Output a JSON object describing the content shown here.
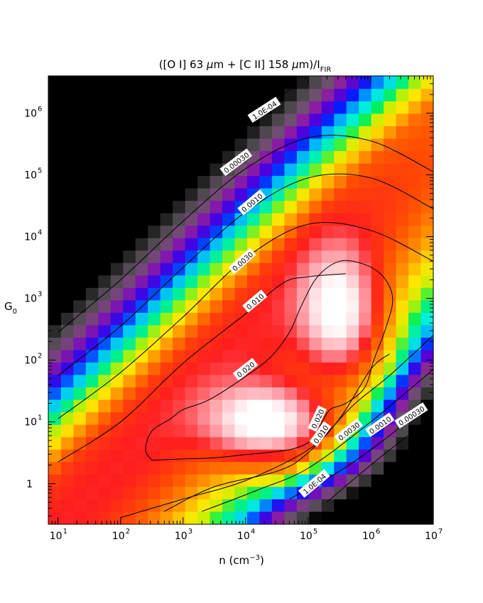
{
  "chart_data": {
    "type": "heatmap",
    "title": {
      "prefix": "([O I] 63 ",
      "mu1": "μ",
      "mid": "m + [C II] 158 ",
      "mu2": "μ",
      "suffix": "m)/I",
      "sub": "FIR"
    },
    "xlabel": {
      "text": "n (cm",
      "sup": "−3",
      "close": ")"
    },
    "ylabel": {
      "text": "G",
      "sub": "0"
    },
    "xscale": "log",
    "yscale": "log",
    "xlim": [
      7.0,
      10000000.0
    ],
    "ylim": [
      0.22,
      4000000.0
    ],
    "x_ticks": [
      {
        "value": 10,
        "base": "10",
        "exp": "1"
      },
      {
        "value": 100,
        "base": "10",
        "exp": "2"
      },
      {
        "value": 1000,
        "base": "10",
        "exp": "3"
      },
      {
        "value": 10000,
        "base": "10",
        "exp": "4"
      },
      {
        "value": 100000,
        "base": "10",
        "exp": "5"
      },
      {
        "value": 1000000,
        "base": "10",
        "exp": "6"
      },
      {
        "value": 10000000,
        "base": "10",
        "exp": "7"
      }
    ],
    "y_ticks": [
      {
        "value": 1,
        "base": "1",
        "exp": ""
      },
      {
        "value": 10,
        "base": "10",
        "exp": "1"
      },
      {
        "value": 100,
        "base": "10",
        "exp": "2"
      },
      {
        "value": 1000,
        "base": "10",
        "exp": "3"
      },
      {
        "value": 10000,
        "base": "10",
        "exp": "4"
      },
      {
        "value": 100000,
        "base": "10",
        "exp": "5"
      },
      {
        "value": 1000000,
        "base": "10",
        "exp": "6"
      }
    ],
    "grid": {
      "log_x_min": 0.85,
      "log_x_max": 7.0,
      "log_y_min": -0.65,
      "log_y_max": 6.6,
      "nx": 31,
      "ny": 36
    },
    "model": {
      "peak1": {
        "log_n": 4.35,
        "log_g0": 1.0,
        "value": 0.045
      },
      "peak2": {
        "log_n": 5.5,
        "log_g0": 2.75,
        "value": 0.038
      }
    },
    "contours": [
      {
        "level": "1.0E-04",
        "label": "1.0E-04",
        "upper": [
          [
            1.0,
            3.05
          ],
          [
            2.0,
            4.0
          ],
          [
            3.0,
            5.0
          ],
          [
            4.0,
            5.85
          ],
          [
            4.8,
            6.45
          ]
        ],
        "lower": [
          [
            5.3,
            -0.3
          ],
          [
            6.0,
            0.3
          ],
          [
            7.0,
            1.1
          ]
        ]
      },
      {
        "level": "0.00030",
        "label": "0.00030",
        "upper": [
          [
            1.0,
            2.45
          ],
          [
            2.0,
            3.3
          ],
          [
            3.0,
            4.25
          ],
          [
            4.0,
            5.1
          ],
          [
            5.0,
            5.6
          ],
          [
            6.0,
            5.55
          ],
          [
            7.0,
            5.05
          ]
        ],
        "lower": [
          [
            4.7,
            -0.25
          ],
          [
            5.5,
            0.2
          ],
          [
            6.2,
            0.7
          ],
          [
            7.0,
            1.35
          ]
        ]
      },
      {
        "level": "0.0010",
        "label": "0.0010",
        "upper": [
          [
            1.0,
            1.75
          ],
          [
            2.0,
            2.55
          ],
          [
            3.0,
            3.5
          ],
          [
            4.0,
            4.4
          ],
          [
            5.0,
            4.95
          ],
          [
            6.0,
            4.95
          ],
          [
            7.0,
            4.45
          ]
        ],
        "lower": [
          [
            3.3,
            -0.45
          ],
          [
            4.2,
            -0.1
          ],
          [
            5.0,
            0.25
          ],
          [
            6.0,
            1.0
          ],
          [
            7.0,
            1.85
          ]
        ]
      },
      {
        "level": "0.0030",
        "label": "0.0030",
        "upper": [
          [
            1.0,
            1.05
          ],
          [
            2.0,
            1.8
          ],
          [
            3.0,
            2.7
          ],
          [
            4.0,
            3.65
          ],
          [
            5.0,
            4.2
          ],
          [
            6.0,
            4.1
          ],
          [
            7.0,
            3.6
          ]
        ],
        "lower": [
          [
            2.7,
            -0.45
          ],
          [
            3.5,
            -0.05
          ],
          [
            4.5,
            0.2
          ],
          [
            5.0,
            0.5
          ],
          [
            5.7,
            1.25
          ],
          [
            6.3,
            1.75
          ],
          [
            7.0,
            2.4
          ]
        ]
      },
      {
        "level": "0.010",
        "label": "0.010",
        "upper": [
          [
            1.0,
            0.35
          ],
          [
            2.0,
            1.0
          ],
          [
            3.0,
            1.95
          ],
          [
            4.0,
            2.75
          ],
          [
            4.6,
            3.25
          ],
          [
            5.0,
            3.35
          ],
          [
            5.6,
            3.4
          ]
        ],
        "lower": [
          [
            2.0,
            -0.55
          ],
          [
            3.0,
            -0.25
          ],
          [
            4.0,
            0.05
          ],
          [
            5.0,
            0.55
          ],
          [
            5.5,
            1.05
          ],
          [
            6.0,
            1.85
          ],
          [
            6.3,
            2.1
          ]
        ]
      }
    ],
    "contour_labels": [
      {
        "text": "1.0E-04",
        "log_n": 4.3,
        "log_g0": 6.05,
        "angle": -33
      },
      {
        "text": "0.00030",
        "log_n": 3.85,
        "log_g0": 5.2,
        "angle": -37
      },
      {
        "text": "0.0010",
        "log_n": 4.1,
        "log_g0": 4.55,
        "angle": -40
      },
      {
        "text": "0.0030",
        "log_n": 3.95,
        "log_g0": 3.6,
        "angle": -42
      },
      {
        "text": "0.010",
        "log_n": 4.15,
        "log_g0": 2.95,
        "angle": -40
      },
      {
        "text": "0.020",
        "log_n": 4.0,
        "log_g0": 1.85,
        "angle": -38
      },
      {
        "text": "0.020",
        "log_n": 5.15,
        "log_g0": 1.05,
        "angle": -65
      },
      {
        "text": "0.010",
        "log_n": 5.2,
        "log_g0": 0.8,
        "angle": -55
      },
      {
        "text": "0.0030",
        "log_n": 5.65,
        "log_g0": 0.85,
        "angle": -38
      },
      {
        "text": "0.0010",
        "log_n": 6.15,
        "log_g0": 0.95,
        "angle": -35
      },
      {
        "text": "0.00030",
        "log_n": 6.65,
        "log_g0": 1.1,
        "angle": -33
      },
      {
        "text": "1.0E-04",
        "log_n": 5.1,
        "log_g0": 0.0,
        "angle": -40
      }
    ],
    "contour_020": [
      [
        2.5,
        0.38
      ],
      [
        3.0,
        0.4
      ],
      [
        3.5,
        0.42
      ],
      [
        4.0,
        0.47
      ],
      [
        4.7,
        0.55
      ],
      [
        5.05,
        0.7
      ],
      [
        5.2,
        0.95
      ],
      [
        5.35,
        1.2
      ],
      [
        5.6,
        1.3
      ],
      [
        5.9,
        1.55
      ],
      [
        6.05,
        2.0
      ],
      [
        6.25,
        2.55
      ],
      [
        6.35,
        3.0
      ],
      [
        6.2,
        3.35
      ],
      [
        5.9,
        3.55
      ],
      [
        5.5,
        3.6
      ],
      [
        5.15,
        3.35
      ],
      [
        4.9,
        2.9
      ],
      [
        4.7,
        2.45
      ],
      [
        4.4,
        2.05
      ],
      [
        3.95,
        1.7
      ],
      [
        3.4,
        1.35
      ],
      [
        3.0,
        1.2
      ],
      [
        2.8,
        1.05
      ],
      [
        2.5,
        0.85
      ],
      [
        2.4,
        0.55
      ],
      [
        2.5,
        0.38
      ]
    ]
  }
}
